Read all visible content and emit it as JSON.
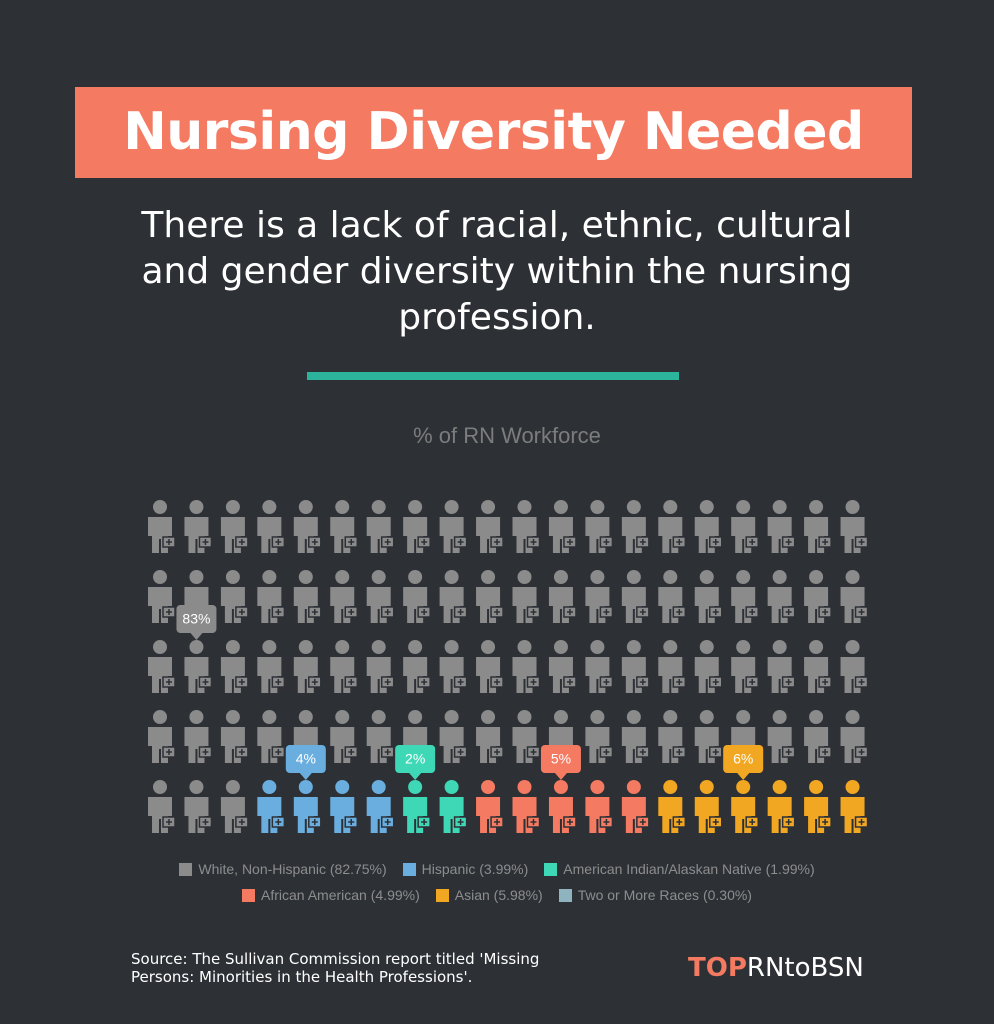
{
  "header": {
    "title": "Nursing Diversity Needed",
    "subtitle": "There is a lack of racial, ethnic, cultural and gender diversity within the nursing profession."
  },
  "chart_data": {
    "type": "pictogram",
    "title": "% of RN Workforce",
    "series": [
      {
        "name": "White, Non-Hispanic (82.75%)",
        "color": "#8b8b8b",
        "value": 83,
        "value_label": "83%"
      },
      {
        "name": "Hispanic (3.99%)",
        "color": "#6aaee0",
        "value": 4,
        "value_label": "4%"
      },
      {
        "name": "American Indian/Alaskan Native (1.99%)",
        "color": "#3fd8b6",
        "value": 2,
        "value_label": "2%"
      },
      {
        "name": "African American (4.99%)",
        "color": "#f47a62",
        "value": 5,
        "value_label": "5%"
      },
      {
        "name": "Asian (5.98%)",
        "color": "#f2a722",
        "value": 6,
        "value_label": "6%"
      },
      {
        "name": "Two or More Races (0.30%)",
        "color": "#8fb4c0",
        "value": 0
      }
    ]
  },
  "footer": {
    "source": "Source: The Sullivan Commission report titled 'Missing Persons: Minorities in the Health Professions'.",
    "brand_top": "TOP",
    "brand_rest": "RNtoBSN"
  }
}
